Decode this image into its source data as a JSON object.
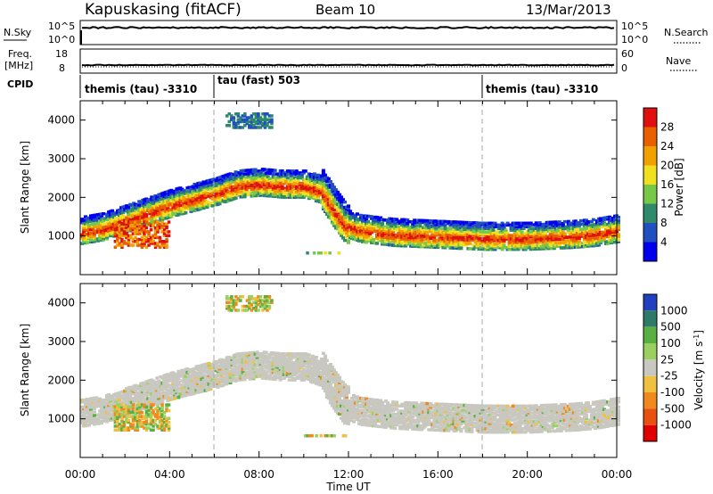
{
  "header": {
    "station": "Kapuskasing (fitACF)",
    "beam": "Beam 10",
    "date": "13/Mar/2013"
  },
  "noise_panel": {
    "left_label": "N.Sky",
    "left_ticks": [
      "10^5",
      "10^0"
    ],
    "right_label": "N.Search",
    "right_ticks": [
      "10^5",
      "10^0"
    ]
  },
  "freq_panel": {
    "left_label_line1": "Freq.",
    "left_label_line2": "[MHz]",
    "left_ticks": [
      "18",
      "8"
    ],
    "right_label": "Nave",
    "right_ticks": [
      "60",
      "0"
    ]
  },
  "cpid_panel": {
    "label": "CPID",
    "segments": [
      {
        "label": "themis (tau) -3310",
        "start_hour": 0
      },
      {
        "label": "tau (fast) 503",
        "start_hour": 6
      },
      {
        "label": "themis (tau) -3310",
        "start_hour": 18
      }
    ]
  },
  "power_panel": {
    "ylabel": "Slant Range [km]",
    "yticks": [
      "4000",
      "3000",
      "2000",
      "1000"
    ],
    "colorbar_title": "Power [dB]",
    "colorbar_ticks": [
      "28",
      "24",
      "20",
      "16",
      "12",
      "8",
      "4"
    ],
    "colors": [
      "#0000ee",
      "#2050c0",
      "#2e8a6a",
      "#78c848",
      "#f0e020",
      "#f0a000",
      "#e86000",
      "#e01010"
    ]
  },
  "velocity_panel": {
    "ylabel": "Slant Range [km]",
    "yticks": [
      "4000",
      "3000",
      "2000",
      "1000"
    ],
    "colorbar_title": "Velocity [m s",
    "colorbar_title_sup": "-1",
    "colorbar_title_end": "]",
    "colorbar_ticks": [
      "1000",
      "500",
      "100",
      "25",
      "-25",
      "-100",
      "-500",
      "-1000"
    ],
    "colors": [
      "#2040c0",
      "#2e7a68",
      "#58b040",
      "#9ad060",
      "#c8c8c0",
      "#f0c040",
      "#f08a20",
      "#e85010",
      "#e00000"
    ]
  },
  "xaxis": {
    "label": "Time UT",
    "ticks": [
      "00:00",
      "04:00",
      "08:00",
      "12:00",
      "16:00",
      "20:00",
      "00:00"
    ]
  },
  "chart_data": {
    "type": "heatmap",
    "title": "Kapuskasing (fitACF)",
    "xlabel": "Time UT",
    "ylabel": "Slant Range [km]",
    "xlim": [
      0,
      24
    ],
    "ylim": [
      0,
      4500
    ],
    "power_band_center_km": [
      [
        0.0,
        1150
      ],
      [
        1.0,
        1250
      ],
      [
        2.0,
        1450
      ],
      [
        3.0,
        1650
      ],
      [
        4.0,
        1850
      ],
      [
        5.0,
        2000
      ],
      [
        6.0,
        2150
      ],
      [
        7.0,
        2350
      ],
      [
        8.0,
        2400
      ],
      [
        9.0,
        2350
      ],
      [
        10.0,
        2350
      ],
      [
        10.8,
        2200
      ],
      [
        11.3,
        1750
      ],
      [
        11.8,
        1350
      ],
      [
        12.5,
        1200
      ],
      [
        14.0,
        1100
      ],
      [
        16.0,
        1050
      ],
      [
        18.0,
        1000
      ],
      [
        20.0,
        1000
      ],
      [
        22.0,
        1050
      ],
      [
        23.0,
        1100
      ],
      [
        24.0,
        1200
      ]
    ],
    "patches": [
      {
        "hours": [
          1.5,
          4.0
        ],
        "range_km": [
          700,
          1400
        ],
        "power_db": 26,
        "velocity": -100
      },
      {
        "hours": [
          6.5,
          8.5
        ],
        "range_km": [
          3800,
          4200
        ],
        "power_db": 6
      },
      {
        "hours": [
          10.0,
          12.0
        ],
        "range_km": [
          550,
          600
        ],
        "power_db": 12,
        "velocity": -100
      }
    ]
  }
}
